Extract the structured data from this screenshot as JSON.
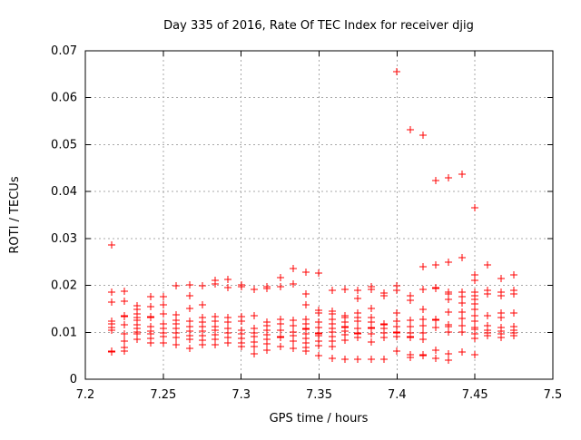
{
  "chart_data": {
    "type": "scatter",
    "title": "Day 335 of 2016, Rate Of TEC Index for receiver djig",
    "xlabel": "GPS time / hours",
    "ylabel": "ROTI / TECUs",
    "xlim": [
      7.2,
      7.5
    ],
    "ylim": [
      0,
      0.07
    ],
    "xticks": [
      7.2,
      7.25,
      7.3,
      7.35,
      7.4,
      7.45,
      7.5
    ],
    "xtick_labels": [
      "7.2",
      "7.25",
      "7.3",
      "7.35",
      "7.4",
      "7.45",
      "7.5"
    ],
    "yticks": [
      0,
      0.01,
      0.02,
      0.03,
      0.04,
      0.05,
      0.06,
      0.07
    ],
    "ytick_labels": [
      "0",
      "0.01",
      "0.02",
      "0.03",
      "0.04",
      "0.05",
      "0.06",
      "0.07"
    ],
    "grid": true,
    "legend": false,
    "marker": "plus",
    "marker_color": "#ff0000",
    "series": [
      {
        "name": "ROTI",
        "columns": [
          {
            "x": 7.2167,
            "y": [
              0.0287,
              0.0186,
              0.0164,
              0.0124,
              0.0118,
              0.0111,
              0.0105,
              0.006,
              0.0058
            ]
          },
          {
            "x": 7.225,
            "y": [
              0.0187,
              0.0166,
              0.0136,
              0.0134,
              0.0116,
              0.0097,
              0.0082,
              0.0068,
              0.0059
            ]
          },
          {
            "x": 7.2333,
            "y": [
              0.0157,
              0.0148,
              0.014,
              0.0132,
              0.0125,
              0.0116,
              0.0109,
              0.01,
              0.0097,
              0.0085
            ]
          },
          {
            "x": 7.2417,
            "y": [
              0.0176,
              0.0155,
              0.0134,
              0.0132,
              0.0113,
              0.0103,
              0.0096,
              0.0087,
              0.0078
            ]
          },
          {
            "x": 7.25,
            "y": [
              0.0176,
              0.0158,
              0.0139,
              0.0117,
              0.0109,
              0.0099,
              0.009,
              0.0078
            ]
          },
          {
            "x": 7.2583,
            "y": [
              0.0199,
              0.0138,
              0.0125,
              0.0118,
              0.0109,
              0.0099,
              0.0089,
              0.0073
            ]
          },
          {
            "x": 7.2667,
            "y": [
              0.0201,
              0.0177,
              0.015,
              0.0123,
              0.0113,
              0.0102,
              0.0092,
              0.0085,
              0.0065
            ]
          },
          {
            "x": 7.275,
            "y": [
              0.0199,
              0.0158,
              0.0131,
              0.0121,
              0.0112,
              0.0103,
              0.0093,
              0.0083,
              0.0073
            ]
          },
          {
            "x": 7.2833,
            "y": [
              0.0211,
              0.0203,
              0.0134,
              0.0124,
              0.0112,
              0.0104,
              0.0094,
              0.0085,
              0.0073
            ]
          },
          {
            "x": 7.2917,
            "y": [
              0.0212,
              0.0196,
              0.0131,
              0.0121,
              0.0108,
              0.0099,
              0.0089,
              0.0077
            ]
          },
          {
            "x": 7.3,
            "y": [
              0.0202,
              0.0197,
              0.0134,
              0.0124,
              0.0105,
              0.0097,
              0.0087,
              0.0077,
              0.007
            ]
          },
          {
            "x": 7.3083,
            "y": [
              0.0192,
              0.0135,
              0.0109,
              0.0099,
              0.009,
              0.008,
              0.007,
              0.0054
            ]
          },
          {
            "x": 7.3167,
            "y": [
              0.0197,
              0.0193,
              0.0121,
              0.0115,
              0.0105,
              0.0095,
              0.0086,
              0.0076,
              0.0061
            ]
          },
          {
            "x": 7.325,
            "y": [
              0.0217,
              0.0197,
              0.0128,
              0.0118,
              0.0105,
              0.0091,
              0.0089,
              0.007
            ]
          },
          {
            "x": 7.3333,
            "y": [
              0.0235,
              0.0204,
              0.0125,
              0.0115,
              0.0101,
              0.0092,
              0.0082,
              0.0066
            ]
          },
          {
            "x": 7.3417,
            "y": [
              0.0228,
              0.0182,
              0.0158,
              0.0128,
              0.0118,
              0.0108,
              0.0106,
              0.0097,
              0.0087,
              0.0077,
              0.0068,
              0.0059
            ]
          },
          {
            "x": 7.35,
            "y": [
              0.0226,
              0.0147,
              0.0141,
              0.0121,
              0.0111,
              0.0099,
              0.0097,
              0.0092,
              0.0082,
              0.0072,
              0.005
            ]
          },
          {
            "x": 7.3583,
            "y": [
              0.019,
              0.0145,
              0.0139,
              0.0128,
              0.0118,
              0.0109,
              0.01,
              0.0091,
              0.0081,
              0.007,
              0.0045
            ]
          },
          {
            "x": 7.3667,
            "y": [
              0.0192,
              0.0136,
              0.0131,
              0.0121,
              0.0112,
              0.011,
              0.0103,
              0.0094,
              0.0084,
              0.0043
            ]
          },
          {
            "x": 7.375,
            "y": [
              0.019,
              0.0173,
              0.0142,
              0.0131,
              0.0124,
              0.0108,
              0.0099,
              0.0097,
              0.0089,
              0.0042
            ]
          },
          {
            "x": 7.3833,
            "y": [
              0.0198,
              0.0192,
              0.0151,
              0.0131,
              0.0121,
              0.0111,
              0.0109,
              0.0097,
              0.0079,
              0.0043
            ]
          },
          {
            "x": 7.3917,
            "y": [
              0.0184,
              0.0178,
              0.0118,
              0.0116,
              0.0108,
              0.0099,
              0.0089,
              0.0043
            ]
          },
          {
            "x": 7.4,
            "y": [
              0.0656,
              0.0199,
              0.0189,
              0.0141,
              0.0123,
              0.0112,
              0.0101,
              0.0099,
              0.009,
              0.006
            ]
          },
          {
            "x": 7.4083,
            "y": [
              0.0531,
              0.0177,
              0.0168,
              0.0126,
              0.0113,
              0.0099,
              0.0091,
              0.0089,
              0.0053,
              0.0046
            ]
          },
          {
            "x": 7.4167,
            "y": [
              0.052,
              0.024,
              0.0191,
              0.0149,
              0.0128,
              0.0114,
              0.0099,
              0.0086,
              0.0052,
              0.005
            ]
          },
          {
            "x": 7.425,
            "y": [
              0.0423,
              0.0244,
              0.0195,
              0.0193,
              0.0127,
              0.0125,
              0.0111,
              0.0062,
              0.0044
            ]
          },
          {
            "x": 7.4333,
            "y": [
              0.0429,
              0.0249,
              0.0186,
              0.0181,
              0.017,
              0.0144,
              0.0116,
              0.0112,
              0.0101,
              0.0054,
              0.0041
            ]
          },
          {
            "x": 7.4417,
            "y": [
              0.0437,
              0.0259,
              0.0185,
              0.0176,
              0.0162,
              0.0144,
              0.0129,
              0.0114,
              0.0101,
              0.0058
            ]
          },
          {
            "x": 7.45,
            "y": [
              0.0366,
              0.0222,
              0.0211,
              0.0185,
              0.0177,
              0.017,
              0.016,
              0.0149,
              0.0136,
              0.0123,
              0.011,
              0.0106,
              0.0096,
              0.0087,
              0.0053
            ]
          },
          {
            "x": 7.4583,
            "y": [
              0.0244,
              0.019,
              0.0181,
              0.0136,
              0.0115,
              0.0105,
              0.0099,
              0.0092
            ]
          },
          {
            "x": 7.4667,
            "y": [
              0.0215,
              0.0186,
              0.0177,
              0.0141,
              0.0132,
              0.0111,
              0.0103,
              0.0096,
              0.0089
            ]
          },
          {
            "x": 7.475,
            "y": [
              0.0223,
              0.019,
              0.0181,
              0.0141,
              0.0112,
              0.0105,
              0.0099,
              0.0092
            ]
          }
        ]
      }
    ]
  }
}
